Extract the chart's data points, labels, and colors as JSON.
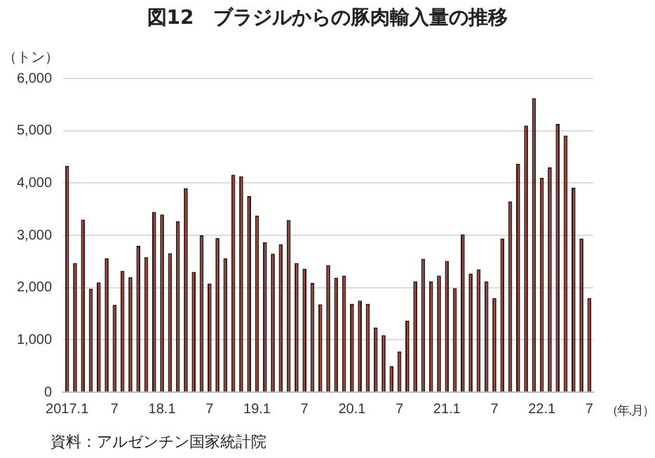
{
  "chart_data": {
    "type": "bar",
    "title": "図12　ブラジルからの豚肉輸入量の推移",
    "ylabel": "（トン）",
    "xlabel": "（年.月）",
    "categories": [
      "2017.1",
      null,
      null,
      null,
      null,
      null,
      "7",
      null,
      null,
      null,
      null,
      null,
      "18.1",
      null,
      null,
      null,
      null,
      null,
      "7",
      null,
      null,
      null,
      null,
      null,
      "19.1",
      null,
      null,
      null,
      null,
      null,
      "7",
      null,
      null,
      null,
      null,
      null,
      "20.1",
      null,
      null,
      null,
      null,
      null,
      "7",
      null,
      null,
      null,
      null,
      null,
      "21.1",
      null,
      null,
      null,
      null,
      null,
      "7",
      null,
      null,
      null,
      null,
      null,
      "22.1",
      null,
      null,
      null,
      null,
      null,
      "7"
    ],
    "values": [
      4330,
      2470,
      3300,
      1980,
      2100,
      2560,
      1670,
      2320,
      2200,
      2800,
      2580,
      3450,
      3400,
      2660,
      3270,
      3900,
      2300,
      3000,
      2080,
      2950,
      2560,
      4160,
      4130,
      3750,
      3380,
      2870,
      2650,
      2830,
      3290,
      2470,
      2360,
      2090,
      1680,
      2430,
      2190,
      2230,
      1690,
      1750,
      1690,
      1240,
      1090,
      500,
      780,
      1370,
      2120,
      2550,
      2120,
      2230,
      2510,
      1990,
      3020,
      2270,
      2350,
      2120,
      1800,
      2940,
      3650,
      4370,
      5100,
      5620,
      4100,
      4300,
      5130,
      4910,
      3910,
      2940,
      1800
    ],
    "color": "#8b3a2e",
    "ylim": [
      0,
      6000
    ],
    "yticks": [
      0,
      {
        "value": 1000,
        "label": "1,000"
      },
      {
        "value": 2000,
        "label": "2,000"
      },
      {
        "value": 3000,
        "label": "3,000"
      },
      {
        "value": 4000,
        "label": "4,000"
      },
      {
        "value": 5000,
        "label": "5,000"
      },
      {
        "value": 6000,
        "label": "6,000"
      }
    ],
    "grid": "y",
    "legend": false,
    "annotations": [
      "資料：アルゼンチン国家統計院"
    ]
  }
}
